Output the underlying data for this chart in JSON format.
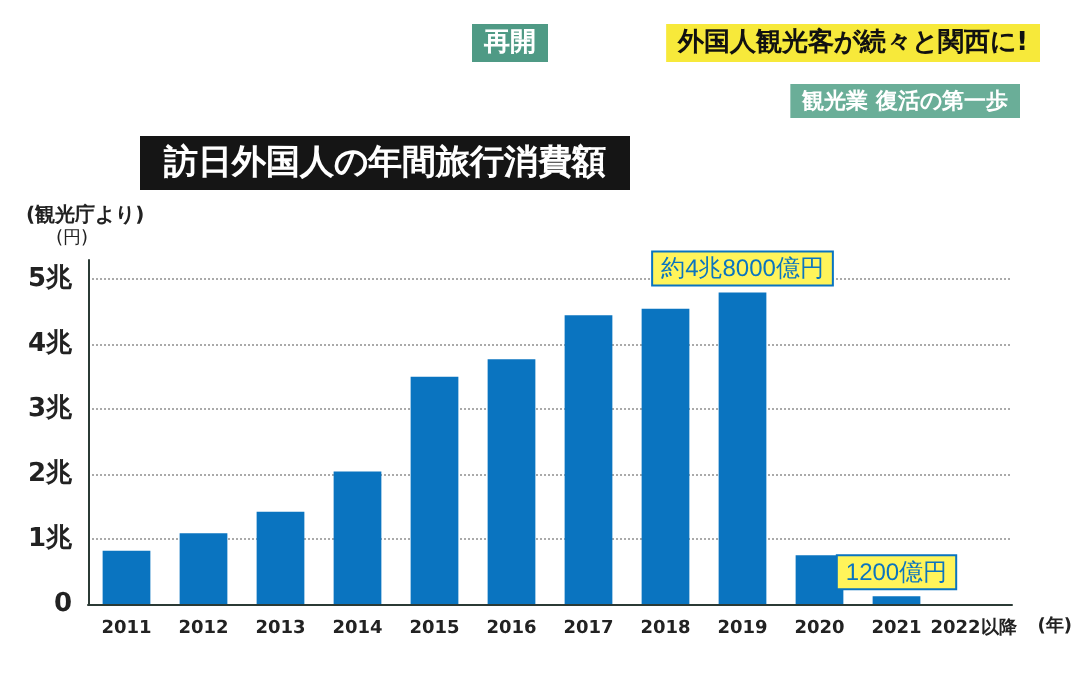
{
  "chart_data": {
    "type": "bar",
    "title": "訪日外国人の年間旅行消費額",
    "subtitle": "(観光庁より)",
    "ylabel": "(円)",
    "xlabel": "(年)",
    "categories": [
      "2011",
      "2012",
      "2013",
      "2014",
      "2015",
      "2016",
      "2017",
      "2018",
      "2019",
      "2020",
      "2021",
      "2022以降"
    ],
    "values": [
      0.82,
      1.09,
      1.42,
      2.04,
      3.5,
      3.77,
      4.45,
      4.55,
      4.8,
      0.75,
      0.12,
      null
    ],
    "color": "#0a74c0",
    "ylim": [
      0,
      5.3
    ],
    "yticks": [
      {
        "value": 0,
        "label": "0"
      },
      {
        "value": 1,
        "label": "1兆"
      },
      {
        "value": 2,
        "label": "2兆"
      },
      {
        "value": 3,
        "label": "3兆"
      },
      {
        "value": 4,
        "label": "4兆"
      },
      {
        "value": 5,
        "label": "5兆"
      }
    ],
    "grid": "y",
    "annotations": [
      "再開",
      "外国人観光客が続々と関西に!",
      "観光業 復活の第一歩",
      {
        "text": "約4兆8000億円",
        "x": "2019",
        "y": 4.8
      },
      {
        "text": "1200億円",
        "x": "2021",
        "y": 0.12
      }
    ]
  }
}
